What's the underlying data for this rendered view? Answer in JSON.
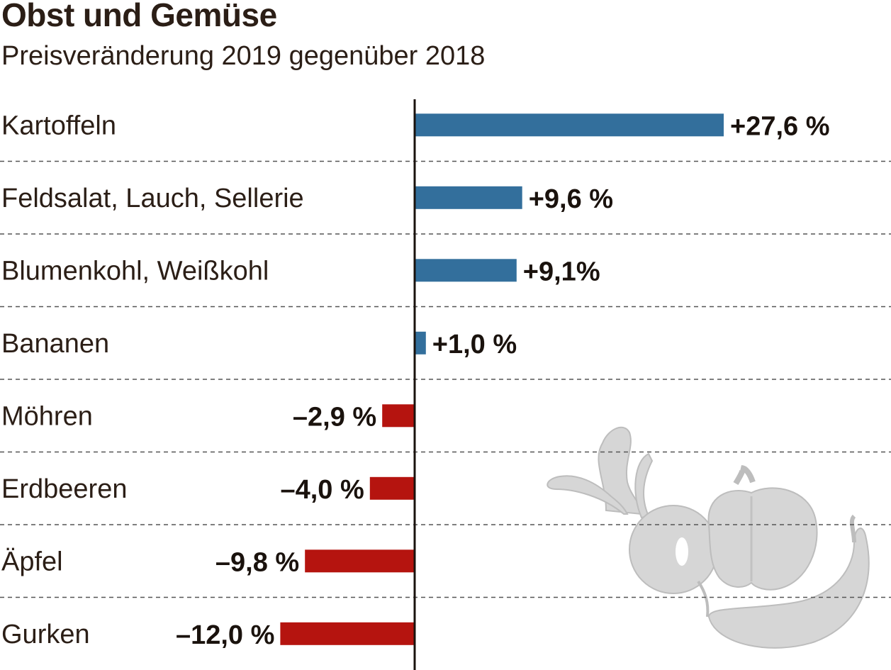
{
  "chart_data": {
    "type": "bar",
    "orientation": "horizontal",
    "title": "Obst und Gemüse",
    "subtitle": "Preisveränderung 2019 gegenüber 2018",
    "categories": [
      "Kartoffeln",
      "Feldsalat, Lauch, Sellerie",
      "Blumenkohl, Weißkohl",
      "Bananen",
      "Möhren",
      "Erdbeeren",
      "Äpfel",
      "Gurken"
    ],
    "values": [
      27.6,
      9.6,
      9.1,
      1.0,
      -2.9,
      -4.0,
      -9.8,
      -12.0
    ],
    "value_labels": [
      "+27,6 %",
      "+9,6 %",
      "+9,1%",
      "+1,0 %",
      "–2,9 %",
      "–4,0 %",
      "–9,8 %",
      "–12,0 %"
    ],
    "colors": {
      "positive": "#336f9c",
      "negative": "#b5140f",
      "axis": "#1a120d",
      "gridline": "#555555",
      "illustration": "#d6d6d6"
    },
    "grid": "dashed row separators",
    "legend": "none",
    "illustration_icons": [
      "radish-icon",
      "bell-pepper-icon",
      "cucumber-icon"
    ]
  }
}
